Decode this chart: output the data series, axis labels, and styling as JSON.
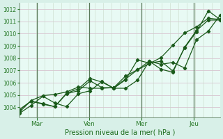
{
  "xlabel": "Pression niveau de la mer( hPa )",
  "ylim": [
    1003.2,
    1012.5
  ],
  "yticks": [
    1004,
    1005,
    1006,
    1007,
    1008,
    1009,
    1010,
    1011,
    1012
  ],
  "xtick_labels": [
    "Mar",
    "Ven",
    "Mer",
    "Jeu"
  ],
  "xtick_positions": [
    1,
    4,
    7,
    10
  ],
  "vline_positions": [
    1,
    4,
    7,
    10
  ],
  "xlim": [
    0,
    11.5
  ],
  "bg_color": "#d8f0e8",
  "plot_bg_color": "#e8faf4",
  "grid_color_h": "#d4b8c8",
  "grid_color_v": "#c8d8c8",
  "vline_color": "#5a7a5a",
  "line_color": "#1a5a1a",
  "tick_color": "#2a7a2a",
  "label_color": "#1a6a1a",
  "series": [
    [
      1003.5,
      1004.15,
      1004.9,
      1004.35,
      1004.05,
      1005.1,
      1005.35,
      1006.1,
      1005.55,
      1005.55,
      1006.2,
      1007.75,
      1007.5,
      1007.65,
      1007.2,
      1009.5,
      1010.2,
      1011.5
    ],
    [
      1003.8,
      1004.5,
      1004.25,
      1004.05,
      1005.15,
      1005.5,
      1006.35,
      1006.05,
      1005.55,
      1006.25,
      1007.85,
      1007.6,
      1007.75,
      1006.95,
      1008.85,
      1010.15,
      1011.85,
      1011.15
    ],
    [
      1003.8,
      1004.5,
      1004.3,
      1004.05,
      1005.1,
      1005.35,
      1006.15,
      1005.6,
      1005.6,
      1006.3,
      1007.05,
      1007.75,
      1007.1,
      1006.85,
      1008.9,
      1010.25,
      1011.1,
      1011.1
    ],
    [
      1003.6,
      1004.55,
      1004.95,
      1005.05,
      1005.25,
      1005.65,
      1005.55,
      1005.55,
      1005.6,
      1006.55,
      1007.05,
      1007.55,
      1008.05,
      1009.05,
      1010.05,
      1010.55,
      1011.25,
      1011.15
    ]
  ],
  "marker": "D",
  "markersize": 2.2,
  "linewidth": 0.9
}
